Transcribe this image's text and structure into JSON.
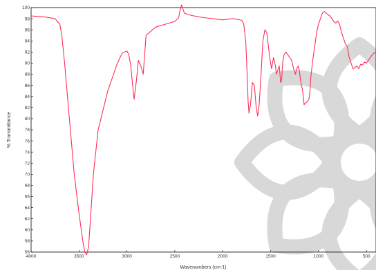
{
  "chart_data": {
    "type": "line",
    "title": "",
    "xlabel": "Wavenumbers (cm-1)",
    "ylabel": "% Transmittance",
    "xlim": [
      4000,
      400
    ],
    "x_reversed": true,
    "ylim": [
      56,
      100
    ],
    "grid": false,
    "legend": "none",
    "x_ticks": [
      4000,
      3500,
      3000,
      2500,
      2000,
      1500,
      1000,
      500
    ],
    "y_ticks": [
      56,
      58,
      60,
      62,
      64,
      66,
      68,
      70,
      72,
      74,
      76,
      78,
      80,
      82,
      84,
      86,
      88,
      90,
      92,
      94,
      96,
      98,
      100
    ],
    "colors": {
      "series": "#ff2d55",
      "axis": "#000000",
      "watermark": "#d8d8d8"
    },
    "watermark": "decorative-flower-seal",
    "series": [
      {
        "name": "",
        "x": [
          4000,
          3850,
          3750,
          3700,
          3680,
          3650,
          3600,
          3550,
          3500,
          3460,
          3440,
          3420,
          3400,
          3380,
          3350,
          3300,
          3200,
          3100,
          3050,
          3000,
          2980,
          2960,
          2940,
          2925,
          2900,
          2880,
          2855,
          2830,
          2800,
          2700,
          2600,
          2500,
          2460,
          2445,
          2430,
          2400,
          2350,
          2300,
          2200,
          2100,
          2000,
          1950,
          1900,
          1850,
          1800,
          1780,
          1760,
          1745,
          1735,
          1725,
          1710,
          1690,
          1670,
          1650,
          1635,
          1620,
          1600,
          1580,
          1560,
          1540,
          1520,
          1505,
          1490,
          1470,
          1450,
          1440,
          1430,
          1410,
          1395,
          1385,
          1375,
          1360,
          1340,
          1320,
          1300,
          1280,
          1260,
          1250,
          1240,
          1230,
          1210,
          1195,
          1180,
          1170,
          1160,
          1150,
          1140,
          1120,
          1100,
          1090,
          1080,
          1060,
          1040,
          1020,
          1000,
          980,
          960,
          940,
          920,
          900,
          880,
          860,
          840,
          820,
          800,
          780,
          760,
          740,
          720,
          700,
          680,
          660,
          640,
          620,
          600,
          580,
          560,
          540,
          520,
          500,
          480,
          460,
          440,
          420,
          400
        ],
        "y": [
          98.5,
          98.3,
          98.0,
          97.0,
          95.0,
          90.0,
          80.0,
          70.0,
          63.0,
          58.0,
          56.0,
          55.5,
          57.0,
          62.0,
          70.0,
          78.0,
          85.0,
          90.0,
          91.8,
          92.2,
          91.5,
          89.5,
          86.0,
          83.5,
          87.0,
          90.5,
          89.5,
          88.0,
          95.0,
          96.5,
          97.0,
          97.5,
          98.2,
          99.5,
          101.0,
          99.0,
          98.7,
          98.5,
          98.2,
          98.0,
          97.8,
          97.9,
          98.0,
          97.9,
          97.7,
          97.0,
          94.0,
          88.0,
          83.0,
          81.0,
          82.5,
          86.5,
          86.0,
          82.0,
          80.5,
          82.5,
          88.0,
          94.0,
          96.0,
          95.5,
          92.5,
          90.5,
          89.0,
          91.0,
          89.5,
          88.0,
          88.5,
          89.5,
          86.5,
          87.0,
          90.0,
          91.5,
          92.0,
          91.5,
          91.0,
          90.5,
          89.0,
          88.5,
          88.0,
          89.0,
          89.5,
          88.0,
          86.0,
          85.5,
          84.0,
          82.5,
          82.8,
          83.0,
          83.5,
          85.0,
          87.5,
          90.5,
          93.0,
          95.5,
          97.0,
          98.0,
          99.0,
          99.3,
          99.0,
          98.7,
          98.5,
          98.0,
          97.5,
          97.2,
          97.6,
          97.0,
          95.5,
          94.5,
          93.5,
          93.0,
          91.0,
          90.0,
          89.0,
          89.2,
          89.5,
          89.0,
          89.8,
          89.7,
          90.2,
          90.0,
          90.5,
          91.0,
          91.5,
          91.8,
          92.0
        ]
      }
    ]
  }
}
